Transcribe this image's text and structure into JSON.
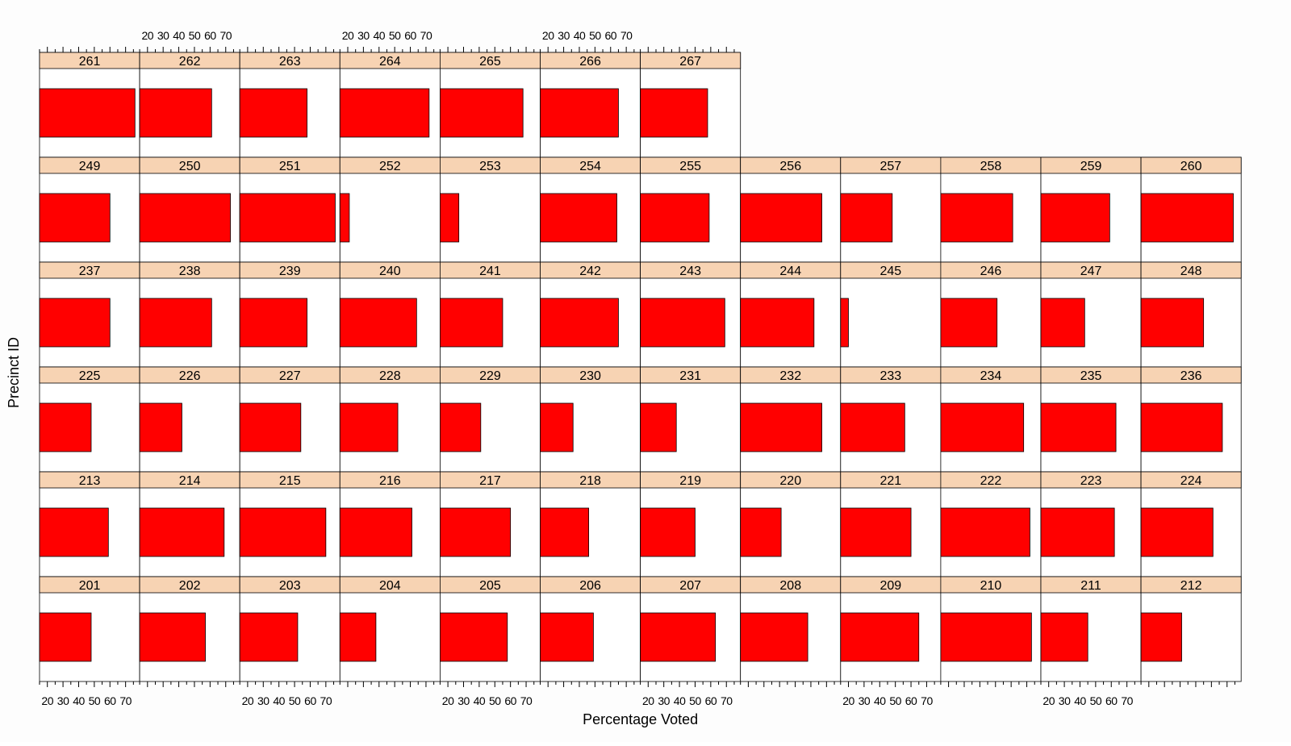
{
  "colors": {
    "bar": "#ff0000",
    "strip": "#f7d3b3",
    "panel_bg": "#ffffff",
    "border": "#000000"
  },
  "chart_data": {
    "type": "bar",
    "orientation": "horizontal",
    "layout": "trellis",
    "xlabel": "Percentage Voted",
    "ylabel": "Precinct ID",
    "xlim": [
      15,
      79
    ],
    "x_tick_labels": [
      "20",
      "30",
      "40",
      "50",
      "60",
      "70"
    ],
    "bar_start": 15,
    "grid": false,
    "rows": [
      {
        "precincts": [
          "261",
          "262",
          "263",
          "264",
          "265",
          "266",
          "267"
        ],
        "values": [
          76,
          61,
          58,
          72,
          68,
          65,
          58
        ]
      },
      {
        "precincts": [
          "249",
          "250",
          "251",
          "252",
          "253",
          "254",
          "255",
          "256",
          "257",
          "258",
          "259",
          "260"
        ],
        "values": [
          60,
          73,
          76,
          21,
          27,
          64,
          59,
          67,
          48,
          61,
          59,
          74
        ]
      },
      {
        "precincts": [
          "237",
          "238",
          "239",
          "240",
          "241",
          "242",
          "243",
          "244",
          "245",
          "246",
          "247",
          "248"
        ],
        "values": [
          60,
          61,
          58,
          64,
          55,
          65,
          69,
          62,
          20,
          51,
          43,
          55
        ]
      },
      {
        "precincts": [
          "225",
          "226",
          "227",
          "228",
          "229",
          "230",
          "231",
          "232",
          "233",
          "234",
          "235",
          "236"
        ],
        "values": [
          48,
          42,
          54,
          52,
          41,
          36,
          38,
          67,
          56,
          68,
          63,
          67
        ]
      },
      {
        "precincts": [
          "213",
          "214",
          "215",
          "216",
          "217",
          "218",
          "219",
          "220",
          "221",
          "222",
          "223",
          "224"
        ],
        "values": [
          59,
          69,
          70,
          61,
          60,
          46,
          50,
          41,
          60,
          72,
          62,
          61
        ]
      },
      {
        "precincts": [
          "201",
          "202",
          "203",
          "204",
          "205",
          "206",
          "207",
          "208",
          "209",
          "210",
          "211",
          "212"
        ],
        "values": [
          48,
          57,
          52,
          38,
          58,
          49,
          63,
          58,
          65,
          73,
          45,
          41
        ]
      }
    ]
  }
}
